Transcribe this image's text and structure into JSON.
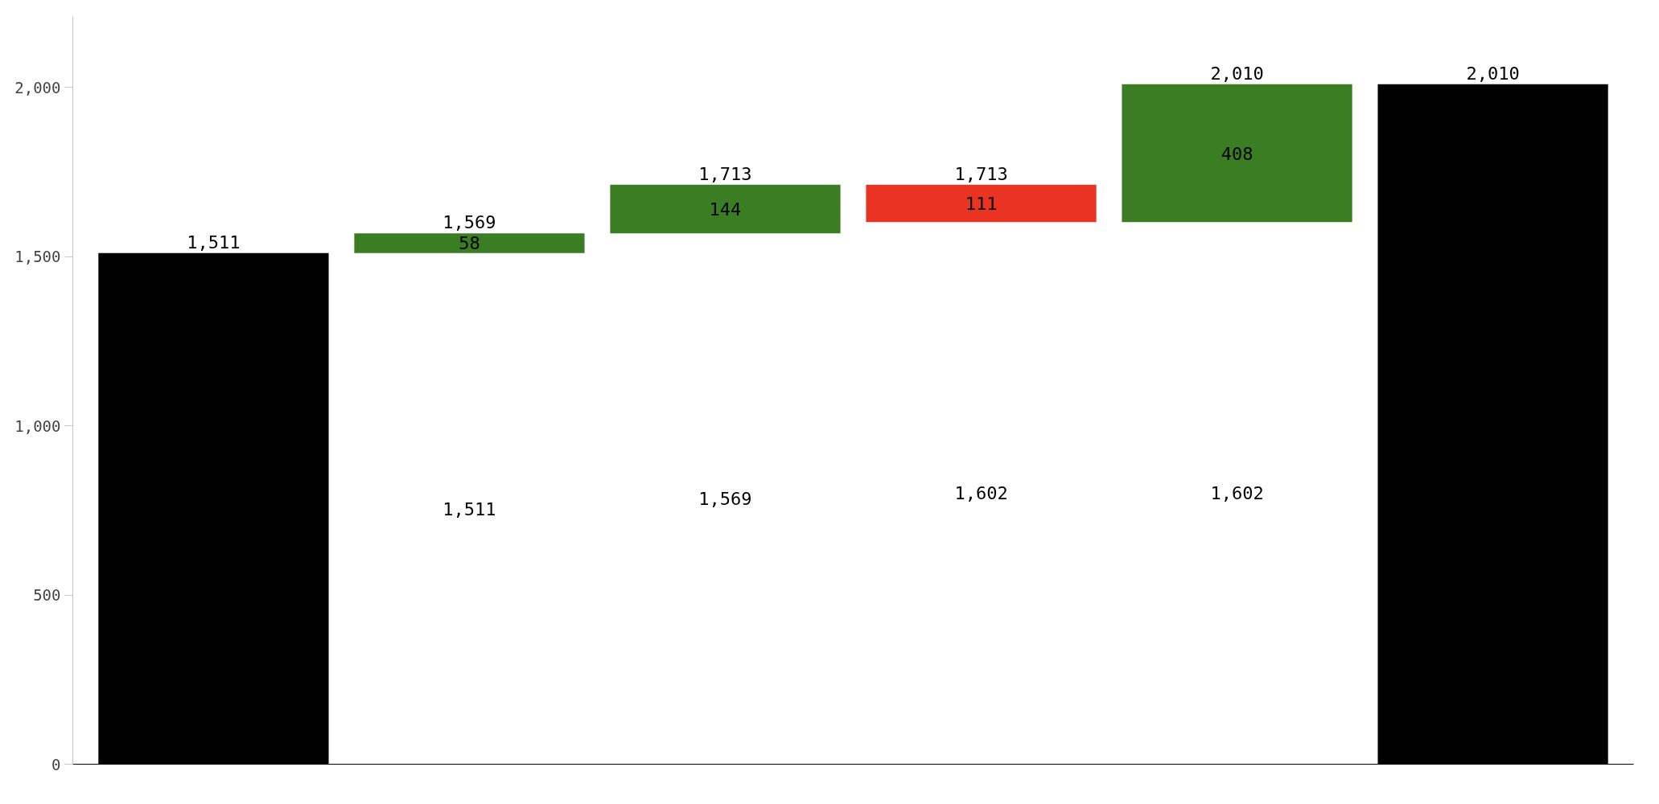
{
  "chart_data": {
    "type": "bar",
    "categories": [
      null,
      null,
      null,
      null,
      null,
      null
    ],
    "values": [
      1511,
      58,
      144,
      -111,
      408,
      2010
    ],
    "base": [
      0,
      1511,
      1569,
      1713,
      1602,
      0
    ],
    "colors": [
      "#000000",
      "#3a7d22",
      "#3a7d22",
      "#e93323",
      "#3a7d22",
      "#000000"
    ],
    "value_labels": [
      null,
      "58",
      "144",
      "111",
      "408",
      null
    ],
    "annotations": [
      {
        "text": "1,511",
        "y": 1511
      },
      {
        "text": "1,569",
        "y": 1569
      },
      {
        "text": "1,713",
        "y": 1713
      },
      {
        "text": "1,713",
        "y": 1713
      },
      {
        "text": "2,010",
        "y": 2010
      },
      {
        "text": "2,010",
        "y": 2010
      },
      "1,511",
      "1,569",
      "1,602",
      "1,602"
    ],
    "ylim": [
      0,
      2210
    ],
    "yticks": [
      0,
      500,
      {
        "value": 1000,
        "label": "1,000"
      },
      {
        "value": 1500,
        "label": "1,500"
      },
      {
        "value": 2000,
        "label": "2,000"
      }
    ],
    "grid": false
  }
}
